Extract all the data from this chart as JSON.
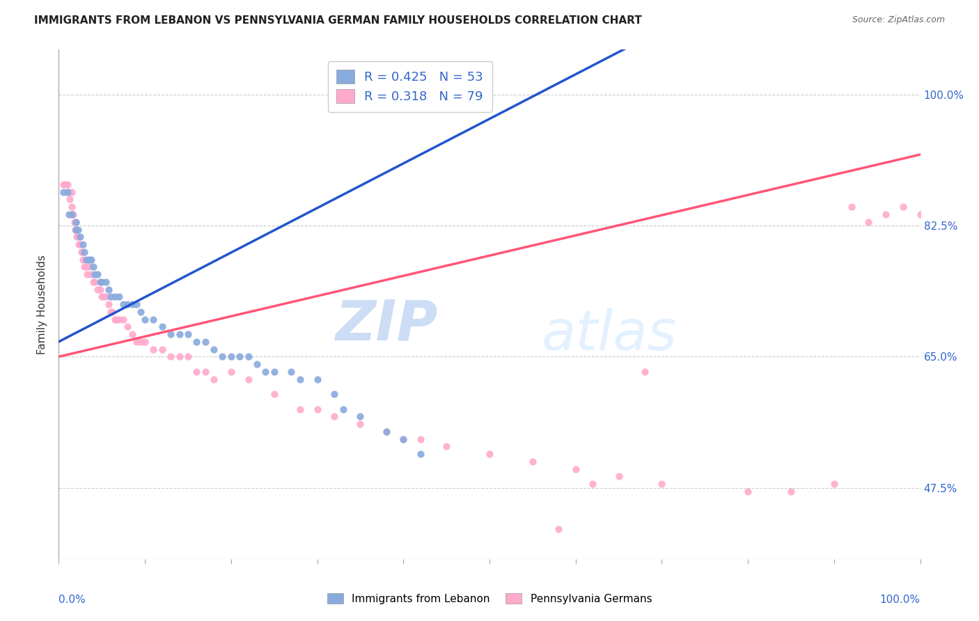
{
  "title": "IMMIGRANTS FROM LEBANON VS PENNSYLVANIA GERMAN FAMILY HOUSEHOLDS CORRELATION CHART",
  "source": "Source: ZipAtlas.com",
  "ylabel": "Family Households",
  "yticks": [
    "100.0%",
    "82.5%",
    "65.0%",
    "47.5%"
  ],
  "ytick_vals": [
    1.0,
    0.825,
    0.65,
    0.475
  ],
  "xlim": [
    0,
    1.0
  ],
  "ylim": [
    0.38,
    1.06
  ],
  "legend_blue": {
    "R": 0.425,
    "N": 53,
    "label": "Immigrants from Lebanon"
  },
  "legend_pink": {
    "R": 0.318,
    "N": 79,
    "label": "Pennsylvania Germans"
  },
  "blue_color": "#88AADD",
  "pink_color": "#FFAACC",
  "blue_line_color": "#2255CC",
  "pink_line_color": "#FF5577",
  "blue_scatter_x": [
    0.005,
    0.01,
    0.012,
    0.015,
    0.02,
    0.02,
    0.022,
    0.025,
    0.028,
    0.03,
    0.032,
    0.035,
    0.038,
    0.04,
    0.042,
    0.045,
    0.048,
    0.05,
    0.055,
    0.058,
    0.06,
    0.065,
    0.07,
    0.075,
    0.08,
    0.085,
    0.09,
    0.095,
    0.1,
    0.11,
    0.12,
    0.13,
    0.14,
    0.15,
    0.16,
    0.17,
    0.18,
    0.19,
    0.2,
    0.21,
    0.22,
    0.23,
    0.24,
    0.25,
    0.27,
    0.28,
    0.3,
    0.32,
    0.33,
    0.35,
    0.38,
    0.4,
    0.42
  ],
  "blue_scatter_y": [
    0.87,
    0.87,
    0.84,
    0.84,
    0.83,
    0.82,
    0.82,
    0.81,
    0.8,
    0.79,
    0.78,
    0.78,
    0.78,
    0.77,
    0.76,
    0.76,
    0.75,
    0.75,
    0.75,
    0.74,
    0.73,
    0.73,
    0.73,
    0.72,
    0.72,
    0.72,
    0.72,
    0.71,
    0.7,
    0.7,
    0.69,
    0.68,
    0.68,
    0.68,
    0.67,
    0.67,
    0.66,
    0.65,
    0.65,
    0.65,
    0.65,
    0.64,
    0.63,
    0.63,
    0.63,
    0.62,
    0.62,
    0.6,
    0.58,
    0.57,
    0.55,
    0.54,
    0.52
  ],
  "pink_scatter_x": [
    0.005,
    0.008,
    0.01,
    0.012,
    0.013,
    0.015,
    0.015,
    0.016,
    0.017,
    0.018,
    0.019,
    0.02,
    0.02,
    0.021,
    0.022,
    0.023,
    0.025,
    0.026,
    0.027,
    0.028,
    0.03,
    0.032,
    0.033,
    0.035,
    0.038,
    0.04,
    0.042,
    0.045,
    0.048,
    0.05,
    0.052,
    0.055,
    0.058,
    0.06,
    0.062,
    0.065,
    0.068,
    0.07,
    0.075,
    0.08,
    0.085,
    0.09,
    0.095,
    0.1,
    0.11,
    0.12,
    0.13,
    0.14,
    0.15,
    0.16,
    0.17,
    0.18,
    0.2,
    0.22,
    0.25,
    0.28,
    0.3,
    0.32,
    0.35,
    0.38,
    0.4,
    0.42,
    0.45,
    0.5,
    0.55,
    0.6,
    0.65,
    0.7,
    0.8,
    0.85,
    0.9,
    0.92,
    0.94,
    0.96,
    0.98,
    1.0,
    0.58,
    0.62,
    0.68
  ],
  "pink_scatter_y": [
    0.88,
    0.88,
    0.88,
    0.87,
    0.86,
    0.87,
    0.85,
    0.84,
    0.84,
    0.83,
    0.82,
    0.83,
    0.82,
    0.81,
    0.81,
    0.8,
    0.8,
    0.79,
    0.79,
    0.78,
    0.77,
    0.77,
    0.76,
    0.77,
    0.76,
    0.75,
    0.75,
    0.74,
    0.74,
    0.73,
    0.73,
    0.73,
    0.72,
    0.71,
    0.71,
    0.7,
    0.7,
    0.7,
    0.7,
    0.69,
    0.68,
    0.67,
    0.67,
    0.67,
    0.66,
    0.66,
    0.65,
    0.65,
    0.65,
    0.63,
    0.63,
    0.62,
    0.63,
    0.62,
    0.6,
    0.58,
    0.58,
    0.57,
    0.56,
    0.55,
    0.54,
    0.54,
    0.53,
    0.52,
    0.51,
    0.5,
    0.49,
    0.48,
    0.47,
    0.47,
    0.48,
    0.85,
    0.83,
    0.84,
    0.85,
    0.84,
    0.42,
    0.48,
    0.63
  ]
}
